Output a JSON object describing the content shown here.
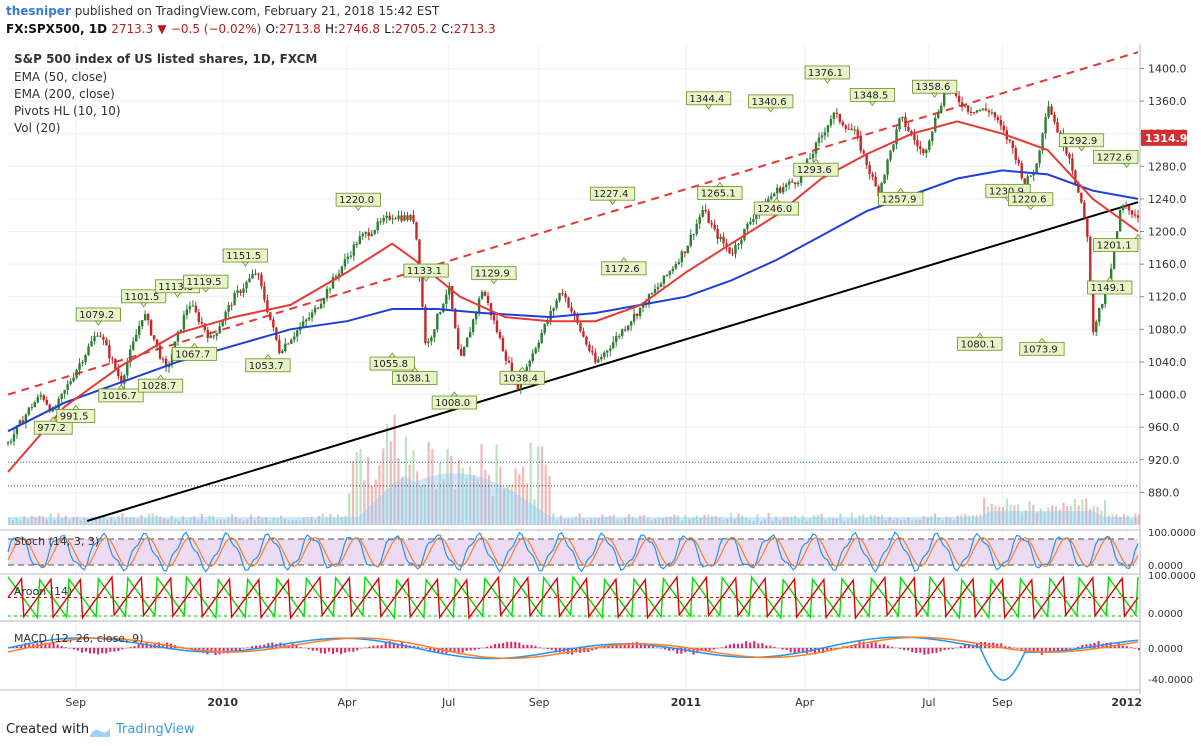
{
  "header": {
    "username": "thesniper",
    "published": " published on TradingView.com, February 21, 2018 15:42 EST",
    "symbol": "FX:SPX500, 1D",
    "last": "2713.3",
    "change": "−0.5 (−0.02%)",
    "o_label": "O:",
    "o": "2713.8",
    "h_label": "H:",
    "h": "2746.8",
    "l_label": "L:",
    "l": "2705.2",
    "c_label": "C:",
    "c": "2713.3",
    "down_arrow": "▼"
  },
  "legend": {
    "title": "S&P 500 index of US listed shares, 1D, FXCM",
    "ema50": "EMA (50, close)",
    "ema200": "EMA (200, close)",
    "pivots": "Pivots HL (10, 10)",
    "vol": "Vol (20)"
  },
  "panes": {
    "stoch": "Stoch (14, 3, 3)",
    "aroon": "Aroon (14)",
    "macd": "MACD (12, 26, close, 9)"
  },
  "colors": {
    "up": "#2e7d32",
    "down": "#c62828",
    "ema50": "#e53935",
    "ema200": "#1e40d6",
    "trend": "#000000",
    "pivot_bg": "#e8f5c8",
    "pivot_border": "#6b8e23",
    "volume": "#90caf9",
    "stoch_k": "#2196f3",
    "stoch_d": "#ff7f27",
    "stoch_band": "#ead7f2",
    "aroon_up": "#00e000",
    "aroon_down": "#e00000",
    "macd_line": "#2196f3",
    "macd_signal": "#ff7f27",
    "macd_hist": "#e91e63",
    "last_price_bg": "#d32f2f"
  },
  "chart_data": {
    "type": "candlestick",
    "title": "S&P 500 index of US listed shares, 1D, FXCM",
    "ylim": [
      840,
      1430
    ],
    "y_ticks": [
      880,
      920,
      960,
      1000,
      1040,
      1080,
      1120,
      1160,
      1200,
      1240,
      1280,
      1320,
      1360,
      1400
    ],
    "y_tick_labels": [
      "880.0",
      "920.0",
      "960.0",
      "1000.0",
      "1040.0",
      "1080.0",
      "1120.0",
      "1160.0",
      "1200.0",
      "1240.0",
      "1280.0",
      "1320.0",
      "1360.0",
      "1400.0"
    ],
    "x_labels": [
      "Sep",
      "2010",
      "Apr",
      "Jul",
      "Sep",
      "2011",
      "Apr",
      "Jul",
      "Sep",
      "2012"
    ],
    "x_label_t": [
      0.06,
      0.19,
      0.3,
      0.39,
      0.47,
      0.6,
      0.705,
      0.815,
      0.88,
      0.99
    ],
    "last_price": "1314.9",
    "last_price_value": 1314.9,
    "close_path": [
      [
        0,
        940
      ],
      [
        0.02,
        985
      ],
      [
        0.03,
        1000
      ],
      [
        0.04,
        977
      ],
      [
        0.06,
        1030
      ],
      [
        0.08,
        1079
      ],
      [
        0.1,
        1016
      ],
      [
        0.12,
        1101
      ],
      [
        0.14,
        1029
      ],
      [
        0.16,
        1113
      ],
      [
        0.18,
        1067
      ],
      [
        0.2,
        1119
      ],
      [
        0.22,
        1151
      ],
      [
        0.24,
        1054
      ],
      [
        0.27,
        1100
      ],
      [
        0.31,
        1190
      ],
      [
        0.34,
        1220
      ],
      [
        0.36,
        1215
      ],
      [
        0.37,
        1056
      ],
      [
        0.39,
        1133
      ],
      [
        0.4,
        1038
      ],
      [
        0.42,
        1130
      ],
      [
        0.45,
        1008
      ],
      [
        0.49,
        1129
      ],
      [
        0.52,
        1038
      ],
      [
        0.55,
        1090
      ],
      [
        0.58,
        1140
      ],
      [
        0.6,
        1180
      ],
      [
        0.615,
        1227
      ],
      [
        0.625,
        1200
      ],
      [
        0.64,
        1173
      ],
      [
        0.66,
        1220
      ],
      [
        0.68,
        1250
      ],
      [
        0.7,
        1265
      ],
      [
        0.73,
        1344
      ],
      [
        0.75,
        1320
      ],
      [
        0.77,
        1246
      ],
      [
        0.79,
        1340
      ],
      [
        0.81,
        1294
      ],
      [
        0.83,
        1376
      ],
      [
        0.85,
        1350
      ],
      [
        0.87,
        1348
      ],
      [
        0.89,
        1300
      ],
      [
        0.9,
        1258
      ],
      [
        0.91,
        1280
      ],
      [
        0.92,
        1359
      ],
      [
        0.93,
        1320
      ],
      [
        0.94,
        1290
      ],
      [
        0.955,
        1200
      ],
      [
        0.96,
        1080
      ],
      [
        0.975,
        1140
      ],
      [
        0.985,
        1231
      ],
      [
        1.0,
        1220
      ]
    ],
    "ema50": [
      [
        0,
        905
      ],
      [
        0.05,
        985
      ],
      [
        0.1,
        1035
      ],
      [
        0.15,
        1075
      ],
      [
        0.2,
        1095
      ],
      [
        0.25,
        1110
      ],
      [
        0.3,
        1150
      ],
      [
        0.34,
        1185
      ],
      [
        0.36,
        1165
      ],
      [
        0.4,
        1120
      ],
      [
        0.44,
        1095
      ],
      [
        0.48,
        1090
      ],
      [
        0.52,
        1090
      ],
      [
        0.56,
        1110
      ],
      [
        0.6,
        1150
      ],
      [
        0.64,
        1185
      ],
      [
        0.68,
        1220
      ],
      [
        0.72,
        1265
      ],
      [
        0.76,
        1295
      ],
      [
        0.8,
        1320
      ],
      [
        0.84,
        1335
      ],
      [
        0.88,
        1320
      ],
      [
        0.92,
        1300
      ],
      [
        0.96,
        1240
      ],
      [
        1,
        1200
      ]
    ],
    "ema200": [
      [
        0,
        955
      ],
      [
        0.05,
        990
      ],
      [
        0.1,
        1015
      ],
      [
        0.15,
        1040
      ],
      [
        0.2,
        1060
      ],
      [
        0.25,
        1080
      ],
      [
        0.3,
        1090
      ],
      [
        0.34,
        1105
      ],
      [
        0.38,
        1105
      ],
      [
        0.42,
        1100
      ],
      [
        0.48,
        1095
      ],
      [
        0.52,
        1100
      ],
      [
        0.56,
        1110
      ],
      [
        0.6,
        1120
      ],
      [
        0.64,
        1140
      ],
      [
        0.68,
        1165
      ],
      [
        0.72,
        1195
      ],
      [
        0.76,
        1225
      ],
      [
        0.8,
        1245
      ],
      [
        0.84,
        1265
      ],
      [
        0.88,
        1275
      ],
      [
        0.92,
        1270
      ],
      [
        0.96,
        1250
      ],
      [
        1,
        1240
      ]
    ],
    "pivots": [
      {
        "t": 0.04,
        "label": "977.2",
        "v": 977.2,
        "pos": "below"
      },
      {
        "t": 0.06,
        "label": "991.5",
        "v": 991.5,
        "pos": "below"
      },
      {
        "t": 0.08,
        "label": "1079.2",
        "v": 1079.2,
        "pos": "above"
      },
      {
        "t": 0.1,
        "label": "1016.7",
        "v": 1016.7,
        "pos": "below"
      },
      {
        "t": 0.12,
        "label": "1101.5",
        "v": 1101.5,
        "pos": "above"
      },
      {
        "t": 0.135,
        "label": "1028.7",
        "v": 1028.7,
        "pos": "below"
      },
      {
        "t": 0.15,
        "label": "1113.8",
        "v": 1113.8,
        "pos": "above"
      },
      {
        "t": 0.165,
        "label": "1067.7",
        "v": 1067.7,
        "pos": "below"
      },
      {
        "t": 0.175,
        "label": "1119.5",
        "v": 1119.5,
        "pos": "above"
      },
      {
        "t": 0.21,
        "label": "1151.5",
        "v": 1151.5,
        "pos": "above"
      },
      {
        "t": 0.23,
        "label": "1053.7",
        "v": 1053.7,
        "pos": "below"
      },
      {
        "t": 0.31,
        "label": "1220.0",
        "v": 1220.0,
        "pos": "above"
      },
      {
        "t": 0.34,
        "label": "1055.8",
        "v": 1055.8,
        "pos": "below"
      },
      {
        "t": 0.36,
        "label": "1038.1",
        "v": 1038.1,
        "pos": "below"
      },
      {
        "t": 0.37,
        "label": "1133.1",
        "v": 1133.1,
        "pos": "above"
      },
      {
        "t": 0.395,
        "label": "1008.0",
        "v": 1008.0,
        "pos": "below"
      },
      {
        "t": 0.43,
        "label": "1129.9",
        "v": 1129.9,
        "pos": "above"
      },
      {
        "t": 0.455,
        "label": "1038.4",
        "v": 1038.4,
        "pos": "below"
      },
      {
        "t": 0.535,
        "label": "1227.4",
        "v": 1227.4,
        "pos": "above"
      },
      {
        "t": 0.545,
        "label": "1172.6",
        "v": 1172.6,
        "pos": "below"
      },
      {
        "t": 0.62,
        "label": "1344.4",
        "v": 1344.4,
        "pos": "above"
      },
      {
        "t": 0.63,
        "label": "1265.1",
        "v": 1265.1,
        "pos": "below"
      },
      {
        "t": 0.675,
        "label": "1340.6",
        "v": 1340.6,
        "pos": "above"
      },
      {
        "t": 0.68,
        "label": "1246.0",
        "v": 1246.0,
        "pos": "below"
      },
      {
        "t": 0.715,
        "label": "1293.6",
        "v": 1293.6,
        "pos": "below"
      },
      {
        "t": 0.725,
        "label": "1376.1",
        "v": 1376.1,
        "pos": "above"
      },
      {
        "t": 0.765,
        "label": "1348.5",
        "v": 1348.5,
        "pos": "above"
      },
      {
        "t": 0.79,
        "label": "1257.9",
        "v": 1257.9,
        "pos": "below"
      },
      {
        "t": 0.82,
        "label": "1358.6",
        "v": 1358.6,
        "pos": "above"
      },
      {
        "t": 0.86,
        "label": "1080.1",
        "v": 1080.1,
        "pos": "below"
      },
      {
        "t": 0.885,
        "label": "1230.9",
        "v": 1230.9,
        "pos": "above"
      },
      {
        "t": 0.905,
        "label": "1220.6",
        "v": 1220.6,
        "pos": "above"
      },
      {
        "t": 0.915,
        "label": "1073.9",
        "v": 1073.9,
        "pos": "below"
      },
      {
        "t": 0.95,
        "label": "1292.9",
        "v": 1292.9,
        "pos": "above"
      },
      {
        "t": 0.975,
        "label": "1149.1",
        "v": 1149.1,
        "pos": "below"
      },
      {
        "t": 0.99,
        "label": "1272.6",
        "v": 1272.6,
        "pos": "above"
      },
      {
        "t": 1.0,
        "label": "1201.1",
        "v": 1201.1,
        "pos": "below"
      }
    ],
    "trend_dashed": [
      [
        0,
        1000
      ],
      [
        1,
        1420
      ]
    ],
    "trend_solid": [
      [
        0.07,
        845
      ],
      [
        1,
        1236
      ]
    ],
    "hline_blue": 917,
    "hline_red": 888,
    "stoch": {
      "ticks": [
        "100.0000",
        "0.0000"
      ]
    },
    "aroon": {
      "ticks": [
        "100.0000",
        "0.0000"
      ]
    },
    "macd": {
      "ticks": [
        "0.0000",
        "-40.0000"
      ]
    }
  },
  "footer": {
    "created": "Created with",
    "brand": "TradingView"
  }
}
